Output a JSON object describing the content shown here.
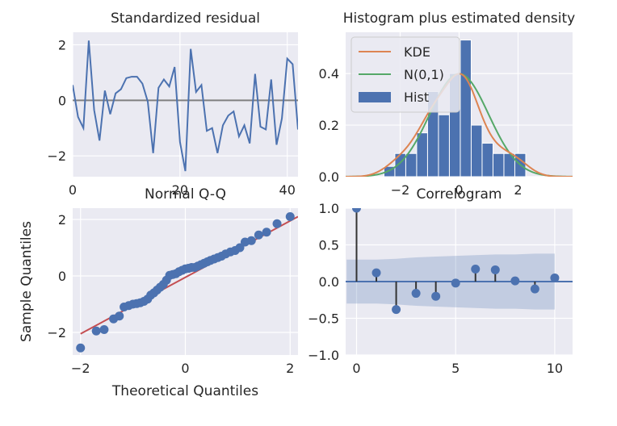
{
  "chart_data": [
    {
      "type": "line",
      "title": "Standardized residual",
      "xlabel": "",
      "ylabel": "",
      "xlim": [
        0,
        42
      ],
      "ylim": [
        -2.75,
        2.45
      ],
      "xticks": [
        0,
        20,
        40
      ],
      "yticks": [
        -2,
        0,
        2
      ],
      "grid": true,
      "zero_line": 0,
      "values": [
        0.55,
        -0.6,
        -1.0,
        2.15,
        -0.35,
        -1.45,
        0.35,
        -0.5,
        0.25,
        0.4,
        0.8,
        0.85,
        0.85,
        0.6,
        -0.05,
        -1.9,
        0.45,
        0.75,
        0.5,
        1.2,
        -1.5,
        -2.55,
        1.85,
        0.3,
        0.55,
        -1.1,
        -1.0,
        -1.9,
        -0.9,
        -0.55,
        -0.4,
        -1.3,
        -0.9,
        -1.55,
        0.95,
        -0.95,
        -1.05,
        0.75,
        -1.6,
        -0.65,
        1.5,
        1.3,
        -1.05
      ]
    },
    {
      "type": "bar",
      "title": "Histogram plus estimated density",
      "xlabel": "",
      "ylabel": "",
      "xlim": [
        -3.85,
        3.85
      ],
      "ylim": [
        0,
        0.56
      ],
      "xticks": [
        -2,
        0,
        2
      ],
      "yticks": [
        0.0,
        0.2,
        0.4
      ],
      "grid": true,
      "legend": "top-left",
      "bins": [
        [
          -2.55,
          -2.18,
          0.04
        ],
        [
          -2.18,
          -1.81,
          0.09
        ],
        [
          -1.81,
          -1.44,
          0.09
        ],
        [
          -1.44,
          -1.07,
          0.17
        ],
        [
          -1.07,
          -0.7,
          0.33
        ],
        [
          -0.7,
          -0.33,
          0.24
        ],
        [
          -0.33,
          0.04,
          0.4
        ],
        [
          0.04,
          0.41,
          0.53
        ],
        [
          0.41,
          0.78,
          0.2
        ],
        [
          0.78,
          1.15,
          0.13
        ],
        [
          1.15,
          1.52,
          0.09
        ],
        [
          1.52,
          1.89,
          0.09
        ],
        [
          1.89,
          2.26,
          0.09
        ]
      ],
      "series": [
        {
          "name": "KDE",
          "color": "#dd8452"
        },
        {
          "name": "N(0,1)",
          "color": "#55a868"
        },
        {
          "name": "Hist",
          "color": "#4c72b0"
        }
      ]
    },
    {
      "type": "scatter",
      "title": "Normal Q-Q",
      "xlabel": "Theoretical Quantiles",
      "ylabel": "Sample Quantiles",
      "xlim": [
        -2.15,
        2.15
      ],
      "ylim": [
        -2.8,
        2.4
      ],
      "xticks": [
        -2,
        0,
        2
      ],
      "yticks": [
        -2,
        0,
        2
      ],
      "grid": true,
      "reference_line": {
        "x": [
          -2.0,
          2.15
        ],
        "y": [
          -2.05,
          2.1
        ],
        "color": "#c44e52"
      },
      "points": [
        [
          -2.0,
          -2.55
        ],
        [
          -1.7,
          -1.95
        ],
        [
          -1.55,
          -1.9
        ],
        [
          -1.37,
          -1.52
        ],
        [
          -1.26,
          -1.42
        ],
        [
          -1.17,
          -1.1
        ],
        [
          -1.08,
          -1.05
        ],
        [
          -1.0,
          -1.0
        ],
        [
          -0.93,
          -0.98
        ],
        [
          -0.86,
          -0.95
        ],
        [
          -0.79,
          -0.9
        ],
        [
          -0.72,
          -0.82
        ],
        [
          -0.66,
          -0.68
        ],
        [
          -0.6,
          -0.6
        ],
        [
          -0.54,
          -0.5
        ],
        [
          -0.48,
          -0.4
        ],
        [
          -0.42,
          -0.3
        ],
        [
          -0.36,
          -0.15
        ],
        [
          -0.3,
          0.02
        ],
        [
          -0.24,
          0.05
        ],
        [
          -0.18,
          0.08
        ],
        [
          -0.12,
          0.15
        ],
        [
          -0.06,
          0.2
        ],
        [
          0.0,
          0.25
        ],
        [
          0.06,
          0.27
        ],
        [
          0.12,
          0.3
        ],
        [
          0.18,
          0.3
        ],
        [
          0.24,
          0.35
        ],
        [
          0.3,
          0.4
        ],
        [
          0.36,
          0.45
        ],
        [
          0.42,
          0.5
        ],
        [
          0.48,
          0.55
        ],
        [
          0.55,
          0.6
        ],
        [
          0.62,
          0.65
        ],
        [
          0.69,
          0.7
        ],
        [
          0.77,
          0.78
        ],
        [
          0.86,
          0.85
        ],
        [
          0.95,
          0.9
        ],
        [
          1.04,
          1.0
        ],
        [
          1.14,
          1.2
        ],
        [
          1.26,
          1.25
        ],
        [
          1.4,
          1.45
        ],
        [
          1.55,
          1.55
        ],
        [
          1.75,
          1.85
        ],
        [
          2.0,
          2.1
        ]
      ]
    },
    {
      "type": "bar",
      "title": "Correlogram",
      "xlabel": "",
      "ylabel": "",
      "xlim": [
        -0.55,
        10.9
      ],
      "ylim": [
        -1.0,
        1.0
      ],
      "xticks": [
        0,
        5,
        10
      ],
      "yticks": [
        -1.0,
        -0.5,
        0.0,
        0.5,
        1.0
      ],
      "grid": true,
      "lags": [
        0,
        1,
        2,
        3,
        4,
        5,
        6,
        7,
        8,
        9,
        10
      ],
      "values": [
        1.0,
        0.12,
        -0.38,
        -0.16,
        -0.2,
        -0.02,
        0.17,
        0.16,
        0.01,
        -0.1,
        0.05
      ],
      "confidence_band": [
        0.3,
        0.3,
        0.31,
        0.33,
        0.34,
        0.35,
        0.36,
        0.37,
        0.37,
        0.38,
        0.38
      ]
    }
  ]
}
